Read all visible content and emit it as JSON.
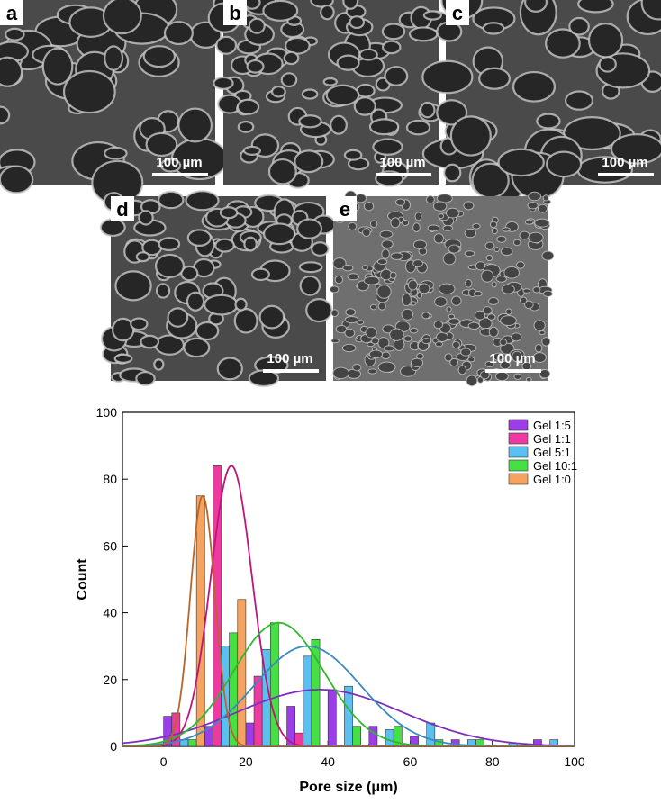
{
  "panels": [
    {
      "label": "a",
      "scale_bar": "100 µm"
    },
    {
      "label": "b",
      "scale_bar": "100 µm"
    },
    {
      "label": "c",
      "scale_bar": "100 µm"
    },
    {
      "label": "d",
      "scale_bar": "100 µm"
    },
    {
      "label": "e",
      "scale_bar": "100 µm"
    }
  ],
  "chart_data": {
    "type": "histogram",
    "x_label": "Pore size (μm)",
    "y_label": "Count",
    "bins": [
      0,
      10,
      20,
      30,
      40,
      50,
      60,
      70,
      80,
      90,
      100
    ],
    "xlim": [
      -10,
      100
    ],
    "xticks": [
      0,
      20,
      40,
      60,
      80,
      100
    ],
    "xminorticks": [
      -10,
      10,
      30,
      50,
      70,
      90
    ],
    "ylim": [
      0,
      100
    ],
    "yticks": [
      0,
      20,
      40,
      60,
      80,
      100
    ],
    "legend": "upper right",
    "series": [
      {
        "name": "Gel 1:5",
        "color": "#9b3ee8",
        "line_color": "#7b2fbf",
        "values": [
          9,
          6,
          7,
          12,
          17,
          6,
          3,
          2,
          0,
          2
        ],
        "fit": {
          "center": 38,
          "sd": 20,
          "peak": 17
        }
      },
      {
        "name": "Gel 1:1",
        "color": "#ee3aa0",
        "line_color": "#c0147a",
        "values": [
          10,
          84,
          21,
          4,
          0,
          0,
          0,
          0,
          0,
          0
        ],
        "fit": {
          "center": 16.5,
          "sd": 5,
          "peak": 84
        }
      },
      {
        "name": "Gel 5:1",
        "color": "#5bc0f0",
        "line_color": "#3a8ac0",
        "values": [
          2,
          30,
          29,
          27,
          18,
          5,
          7,
          2,
          1,
          2
        ],
        "fit": {
          "center": 35,
          "sd": 13,
          "peak": 30
        }
      },
      {
        "name": "Gel 10:1",
        "color": "#44e044",
        "line_color": "#2eb82e",
        "values": [
          2,
          34,
          37,
          32,
          6,
          6,
          2,
          2,
          0,
          0
        ],
        "fit": {
          "center": 28,
          "sd": 11,
          "peak": 37
        }
      },
      {
        "name": "Gel 1:0",
        "color": "#f4a460",
        "line_color": "#b8652a",
        "values": [
          75,
          44,
          0,
          0,
          0,
          0,
          0,
          0,
          0,
          0
        ],
        "fit": {
          "center": 9.5,
          "sd": 3,
          "peak": 75
        }
      }
    ]
  }
}
